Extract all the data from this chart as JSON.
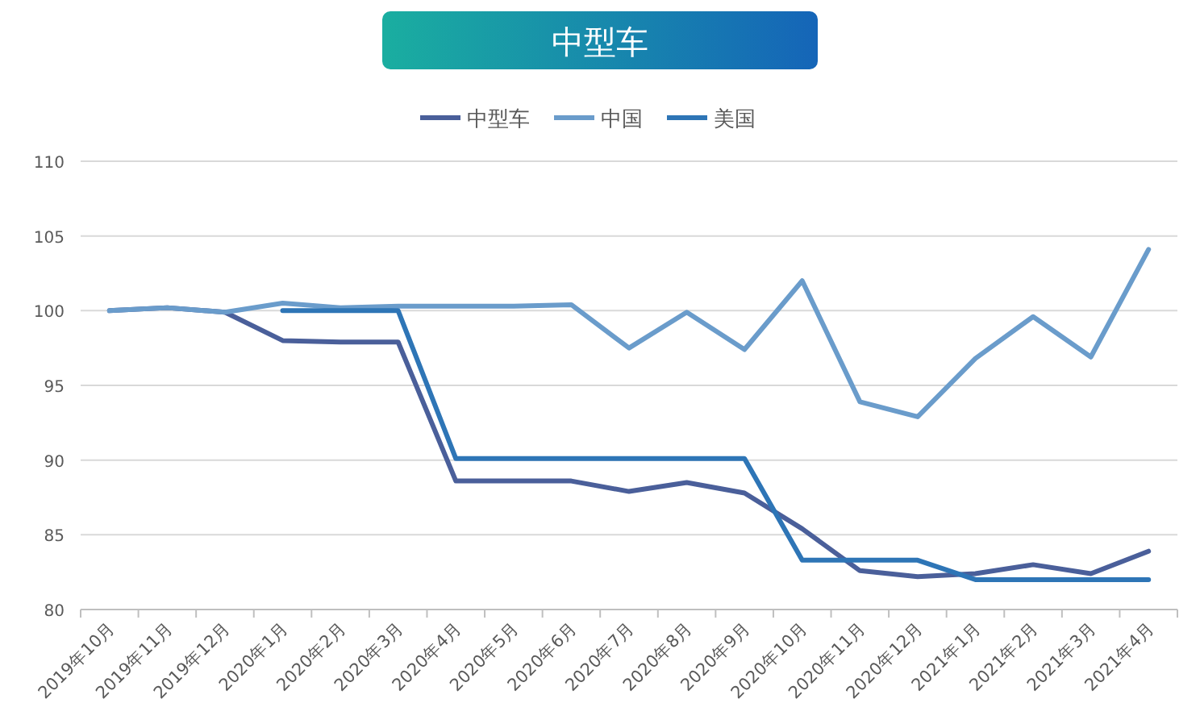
{
  "chart_data": {
    "type": "line",
    "title": "中型车",
    "categories": [
      "2019年10月",
      "2019年11月",
      "2019年12月",
      "2020年1月",
      "2020年2月",
      "2020年3月",
      "2020年4月",
      "2020年5月",
      "2020年6月",
      "2020年7月",
      "2020年8月",
      "2020年9月",
      "2020年10月",
      "2020年11月",
      "2020年12月",
      "2021年1月",
      "2021年2月",
      "2021年3月",
      "2021年4月"
    ],
    "series": [
      {
        "name": "中型车",
        "color": "#4a5f9a",
        "values": [
          100,
          100.2,
          99.9,
          98,
          97.9,
          97.9,
          88.6,
          88.6,
          88.6,
          87.9,
          88.5,
          87.8,
          85.4,
          82.6,
          82.2,
          82.4,
          83.0,
          82.4,
          83.9
        ]
      },
      {
        "name": "中国",
        "color": "#6a9ccb",
        "values": [
          100,
          100.2,
          99.9,
          100.5,
          100.2,
          100.3,
          100.3,
          100.3,
          100.4,
          97.5,
          99.9,
          97.4,
          102.0,
          93.9,
          92.9,
          96.8,
          99.6,
          96.9,
          104.1
        ]
      },
      {
        "name": "美国",
        "color": "#2e75b6",
        "values": [
          null,
          null,
          null,
          100,
          100,
          100,
          90.1,
          90.1,
          90.1,
          90.1,
          90.1,
          90.1,
          83.3,
          83.3,
          83.3,
          82,
          82,
          82,
          82
        ]
      }
    ],
    "ylim": [
      80,
      110
    ],
    "yticks": [
      80,
      85,
      90,
      95,
      100,
      105,
      110
    ],
    "grid": "y",
    "legend": "top",
    "marker": "none",
    "line_style": "solid"
  }
}
